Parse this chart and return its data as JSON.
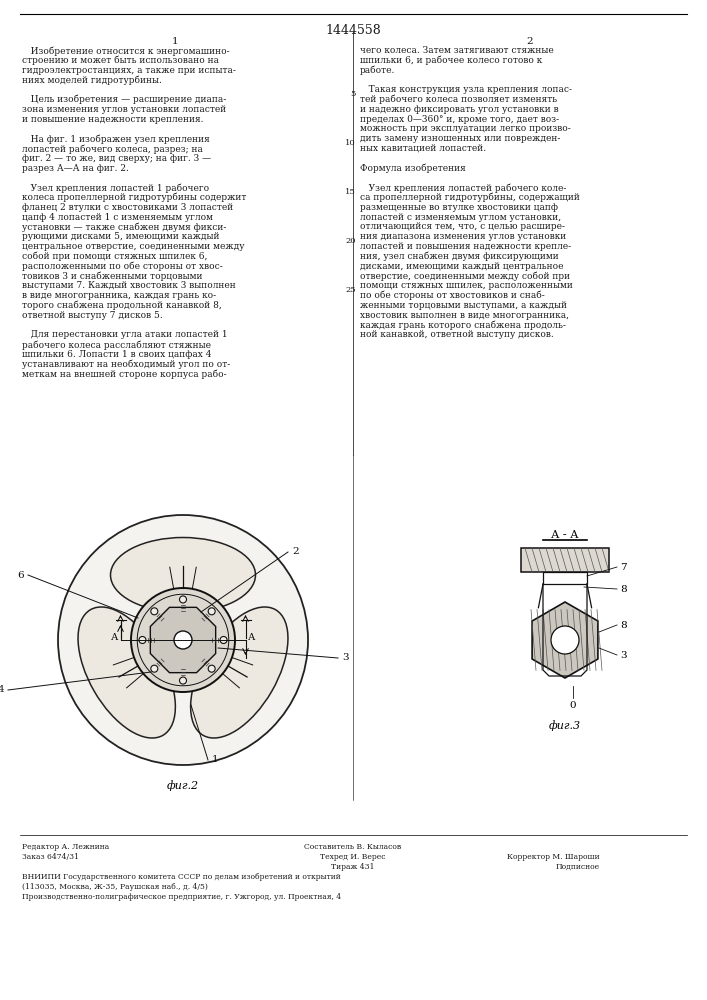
{
  "title": "1444558",
  "col1_header": "1",
  "col2_header": "2",
  "bg_color": "#ffffff",
  "text_color": "#1a1a1a",
  "font_size_body": 6.5,
  "col1_text": [
    "   Изобретение относится к энергомашино-",
    "строению и может быть использовано на",
    "гидроэлектростанциях, а также при испыта-",
    "ниях моделей гидротурбины.",
    "",
    "   Цель изобретения — расширение диапа-",
    "зона изменения углов установки лопастей",
    "и повышение надежности крепления.",
    "",
    "   На фиг. 1 изображен узел крепления",
    "лопастей рабочего колеса, разрез; на",
    "фиг. 2 — то же, вид сверху; на фиг. 3 —",
    "разрез А—А на фиг. 2.",
    "",
    "   Узел крепления лопастей 1 рабочего",
    "колеса пропеллерной гидротурбины содержит",
    "фланец 2 втулки с хвостовиками 3 лопастей",
    "цапф 4 лопастей 1 с изменяемым углом",
    "установки — также снабжен двумя фикси-",
    "рующими дисками 5, имеющими каждый",
    "центральное отверстие, соединенными между",
    "собой при помощи стяжных шпилек 6,",
    "расположенными по обе стороны от хвос-",
    "товиков 3 и снабженными торцовыми",
    "выступами 7. Каждый хвостовик 3 выполнен",
    "в виде многогранника, каждая грань ко-",
    "торого снабжена продольной канавкой 8,",
    "ответной выступу 7 дисков 5.",
    "",
    "   Для перестановки угла атаки лопастей 1",
    "рабочего колеса расслабляют стяжные",
    "шпильки 6. Лопасти 1 в своих цапфах 4",
    "устанавливают на необходимый угол по от-",
    "меткам на внешней стороне корпуса рабо-"
  ],
  "col2_text": [
    "чего колеса. Затем затягивают стяжные",
    "шпильки 6, и рабочее колесо готово к",
    "работе.",
    "",
    "   Такая конструкция узла крепления лопас-",
    "тей рабочего колеса позволяет изменять",
    "и надежно фиксировать угол установки в",
    "пределах 0—360° и, кроме того, дает воз-",
    "можность при эксплуатации легко произво-",
    "дить замену изношенных или поврежден-",
    "ных кавитацией лопастей.",
    "",
    "Формула изобретения",
    "",
    "   Узел крепления лопастей рабочего коле-",
    "са пропеллерной гидротурбины, содержащий",
    "размещенные во втулке хвостовики цапф",
    "лопастей с изменяемым углом установки,",
    "отличающийся тем, что, с целью расшире-",
    "ния диапазона изменения углов установки",
    "лопастей и повышения надежности крепле-",
    "ния, узел снабжен двумя фиксирующими",
    "дисками, имеющими каждый центральное",
    "отверстие, соединенными между собой при",
    "помощи стяжных шпилек, расположенными",
    "по обе стороны от хвостовиков и снаб-",
    "женными торцовыми выступами, а каждый",
    "хвостовик выполнен в виде многогранника,",
    "каждая грань которого снабжена продоль-",
    "ной канавкой, ответной выступу дисков."
  ],
  "fig2_label": "фиг.2",
  "fig3_label": "фиг.3",
  "fig3_section_label": "А - А",
  "footer_lines": [
    [
      "Редактор А. Лежнина",
      "Составитель В. Кыласов",
      ""
    ],
    [
      "Заказ 6474/31",
      "Техред И. Верес",
      "Корректор М. Шароши"
    ],
    [
      "",
      "Тираж 431",
      "Подписное"
    ],
    [
      "ВНИИПИ Государственного комитета СССР по делам изобретений и открытий",
      "",
      ""
    ],
    [
      "(113035, Москва, Ж-35, Раушская наб., д. 4/5)",
      "",
      ""
    ],
    [
      "Производственно-полиграфическое предприятие, г. Ужгород, ул. Проектная, 4",
      "",
      ""
    ]
  ]
}
